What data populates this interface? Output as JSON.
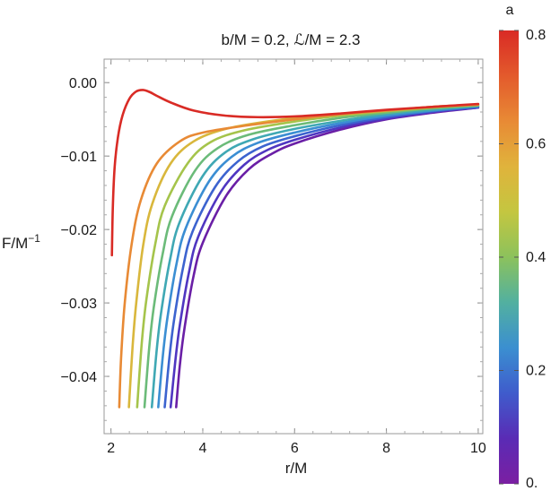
{
  "chart_data": {
    "type": "line",
    "title": "b/M = 0.2, ℒ/M = 2.3",
    "xlabel": "r/M",
    "ylabel": "F/M",
    "ylabel_sup": "−1",
    "xlim": [
      1.85,
      10.1
    ],
    "ylim": [
      -0.0478,
      0.0032
    ],
    "x_ticks": [
      2,
      4,
      6,
      8,
      10
    ],
    "x_tick_labels": [
      "2",
      "4",
      "6",
      "8",
      "10"
    ],
    "y_ticks": [
      0.0,
      -0.01,
      -0.02,
      -0.03,
      -0.04
    ],
    "y_tick_labels": [
      "0.00",
      "−0.01",
      "−0.02",
      "−0.03",
      "−0.04"
    ],
    "grid": false,
    "colorbar": {
      "label": "a",
      "range": [
        0.0,
        0.8
      ],
      "ticks": [
        0.0,
        0.2,
        0.4,
        0.6,
        0.8
      ],
      "tick_labels": [
        "0.",
        "0.2",
        "0.4",
        "0.6",
        "0.8"
      ],
      "colors": [
        "#7b1fa2",
        "#5a2bb5",
        "#3f5ccc",
        "#3b8fd0",
        "#52b0a0",
        "#8cc25c",
        "#c4c640",
        "#e0b33c",
        "#e88a35",
        "#e35a2c",
        "#d92b25"
      ]
    },
    "series": [
      {
        "a": 0.0,
        "color": "#6a1fa6",
        "x": [
          3.42,
          3.5,
          3.6,
          3.8,
          4.0,
          4.5,
          5.0,
          5.5,
          6.0,
          7.0,
          8.0,
          9.0,
          10.0
        ],
        "y": [
          -0.0442,
          -0.0385,
          -0.0335,
          -0.0263,
          -0.0218,
          -0.0155,
          -0.0118,
          -0.0097,
          -0.0083,
          -0.0064,
          -0.005,
          -0.0041,
          -0.0034
        ]
      },
      {
        "a": 0.08,
        "color": "#4f36c1",
        "x": [
          3.3,
          3.4,
          3.5,
          3.7,
          3.9,
          4.4,
          4.9,
          5.4,
          6.0,
          7.0,
          8.0,
          9.0,
          10.0
        ],
        "y": [
          -0.0442,
          -0.038,
          -0.033,
          -0.0258,
          -0.021,
          -0.0148,
          -0.0112,
          -0.0092,
          -0.0078,
          -0.0061,
          -0.0049,
          -0.004,
          -0.0034
        ]
      },
      {
        "a": 0.16,
        "color": "#3c63cf",
        "x": [
          3.17,
          3.27,
          3.37,
          3.57,
          3.77,
          4.27,
          4.77,
          5.3,
          6.0,
          7.0,
          8.0,
          9.0,
          10.0
        ],
        "y": [
          -0.0442,
          -0.0376,
          -0.0325,
          -0.0252,
          -0.0204,
          -0.0142,
          -0.0107,
          -0.0087,
          -0.0073,
          -0.0058,
          -0.0047,
          -0.0039,
          -0.0033
        ]
      },
      {
        "a": 0.24,
        "color": "#3b8ed3",
        "x": [
          3.03,
          3.13,
          3.23,
          3.43,
          3.63,
          4.13,
          4.63,
          5.2,
          6.0,
          7.0,
          8.0,
          9.0,
          10.0
        ],
        "y": [
          -0.0442,
          -0.0372,
          -0.032,
          -0.0246,
          -0.0198,
          -0.0135,
          -0.0101,
          -0.0082,
          -0.0068,
          -0.0055,
          -0.0045,
          -0.0038,
          -0.0032
        ]
      },
      {
        "a": 0.32,
        "color": "#3fa8b4",
        "x": [
          2.89,
          2.99,
          3.09,
          3.29,
          3.49,
          3.99,
          4.49,
          5.1,
          6.0,
          7.0,
          8.0,
          9.0,
          10.0
        ],
        "y": [
          -0.0442,
          -0.0368,
          -0.0314,
          -0.024,
          -0.0191,
          -0.0128,
          -0.0095,
          -0.0077,
          -0.0063,
          -0.0052,
          -0.0043,
          -0.0037,
          -0.0032
        ]
      },
      {
        "a": 0.4,
        "color": "#6bbb79",
        "x": [
          2.73,
          2.83,
          2.93,
          3.13,
          3.33,
          3.83,
          4.33,
          5.0,
          6.0,
          7.0,
          8.0,
          9.0,
          10.0
        ],
        "y": [
          -0.0442,
          -0.0363,
          -0.0307,
          -0.0232,
          -0.0182,
          -0.012,
          -0.0089,
          -0.0071,
          -0.0058,
          -0.0048,
          -0.0041,
          -0.0035,
          -0.0031
        ]
      },
      {
        "a": 0.48,
        "color": "#a5c44b",
        "x": [
          2.57,
          2.67,
          2.77,
          2.97,
          3.17,
          3.67,
          4.17,
          4.9,
          6.0,
          7.0,
          8.0,
          9.0,
          10.0
        ],
        "y": [
          -0.0442,
          -0.0355,
          -0.0296,
          -0.0218,
          -0.0168,
          -0.011,
          -0.0081,
          -0.0065,
          -0.0053,
          -0.0045,
          -0.0039,
          -0.0034,
          -0.003
        ]
      },
      {
        "a": 0.56,
        "color": "#d9b73c",
        "x": [
          2.39,
          2.47,
          2.55,
          2.7,
          2.9,
          3.3,
          3.8,
          4.5,
          5.5,
          6.5,
          8.0,
          9.0,
          10.0
        ],
        "y": [
          -0.0442,
          -0.036,
          -0.03,
          -0.0222,
          -0.0165,
          -0.011,
          -0.008,
          -0.0063,
          -0.0052,
          -0.0045,
          -0.0038,
          -0.0033,
          -0.003
        ]
      },
      {
        "a": 0.64,
        "color": "#e88a35",
        "x": [
          2.18,
          2.22,
          2.3,
          2.45,
          2.65,
          3.0,
          3.5,
          4.0,
          5.0,
          6.0,
          7.0,
          8.0,
          9.0,
          10.0
        ],
        "y": [
          -0.0442,
          -0.0375,
          -0.03,
          -0.022,
          -0.016,
          -0.011,
          -0.008,
          -0.0068,
          -0.0058,
          -0.005,
          -0.0043,
          -0.0038,
          -0.0033,
          -0.003
        ]
      },
      {
        "a": 0.72,
        "color": "#d92b25",
        "x": [
          2.02,
          2.04,
          2.08,
          2.15,
          2.25,
          2.4,
          2.55,
          2.7,
          2.85,
          3.0,
          3.3,
          3.8,
          4.5,
          5.2,
          6.0,
          7.0,
          8.0,
          9.0,
          10.0
        ],
        "y": [
          -0.0235,
          -0.017,
          -0.0115,
          -0.0075,
          -0.0045,
          -0.0022,
          -0.0012,
          -0.001,
          -0.0013,
          -0.0018,
          -0.0027,
          -0.0038,
          -0.0045,
          -0.0047,
          -0.0046,
          -0.0042,
          -0.0037,
          -0.0033,
          -0.0029
        ]
      }
    ]
  }
}
